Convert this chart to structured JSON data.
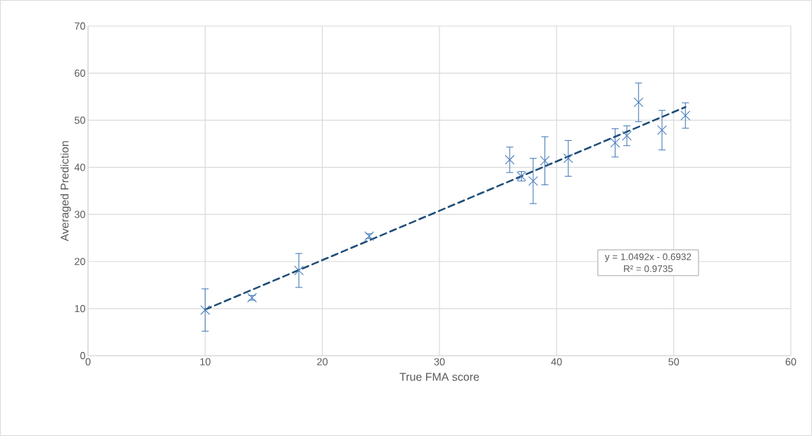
{
  "chart_data": {
    "type": "scatter",
    "xlabel": "True FMA score",
    "ylabel": "Averaged Prediction",
    "xlim": [
      0,
      60
    ],
    "ylim": [
      0,
      70
    ],
    "xticks": [
      0,
      10,
      20,
      30,
      40,
      50,
      60
    ],
    "yticks": [
      0,
      10,
      20,
      30,
      40,
      50,
      60,
      70
    ],
    "grid": true,
    "series": [
      {
        "marker": "cross",
        "color": "#4a7ebb",
        "x": [
          10,
          14,
          18,
          24,
          36,
          37,
          38,
          39,
          41,
          45,
          46,
          47,
          49,
          51
        ],
        "values": [
          9.7,
          12.3,
          18.1,
          25.4,
          41.6,
          38.1,
          37.1,
          41.4,
          41.9,
          45.2,
          46.7,
          53.8,
          47.9,
          51.0
        ],
        "errors": [
          4.5,
          0.5,
          3.6,
          0.5,
          2.7,
          1.0,
          4.8,
          5.1,
          3.8,
          3.0,
          2.1,
          4.1,
          4.2,
          2.7
        ]
      },
      {
        "type": "line",
        "marker": "none",
        "color": "#1f4e79",
        "line_style": "dashed",
        "x": [
          10,
          51
        ],
        "values": [
          9.8,
          52.8
        ]
      }
    ],
    "annotations": [
      "y = 1.0492x - 0.6932",
      "R² = 0.9735"
    ]
  }
}
